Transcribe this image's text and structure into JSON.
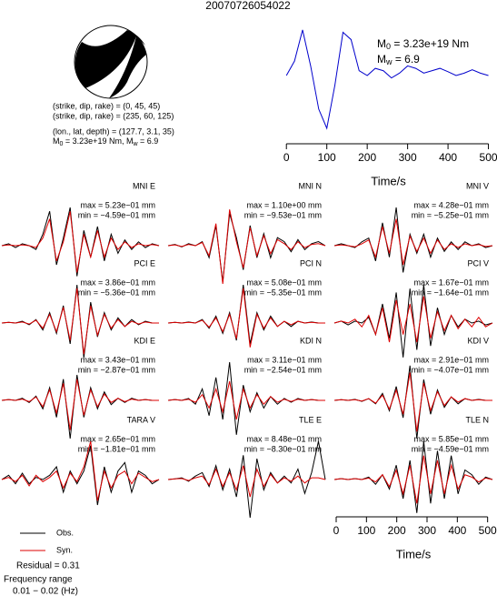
{
  "title": "20070726054022",
  "mechanism": {
    "lines": [
      "(strike, dip, rake) = (0, 45, 45)",
      "(strike, dip, rake) = (235, 60, 125)",
      "(lon., lat, depth) = (127.7, 3.1, 35)"
    ],
    "moment_parts": [
      "M",
      "0",
      " = 3.23e+19 Nm, M",
      "w",
      " = 6.9"
    ]
  },
  "source_labels": {
    "m0_parts": [
      "M",
      "0",
      " = 3.23e+19 Nm"
    ],
    "mw_parts": [
      "M",
      "w",
      " = 6.9"
    ]
  },
  "residual": "Residual = 0.31",
  "frequency": {
    "label": "Frequency range",
    "value": "0.01 − 0.02 (Hz)"
  },
  "chart_data": [
    {
      "type": "line",
      "x": [
        0,
        20,
        40,
        60,
        80,
        100,
        120,
        140,
        160,
        180,
        200,
        220,
        240,
        260,
        280,
        300,
        320,
        340,
        360,
        380,
        400,
        420,
        440,
        460,
        480,
        500
      ],
      "values": [
        0,
        0.3,
        0.95,
        0.2,
        -0.7,
        -1.1,
        -0.2,
        0.9,
        0.75,
        0.1,
        0.0,
        0.15,
        0.1,
        -0.05,
        0.05,
        0.2,
        0.15,
        0.05,
        0.1,
        0.15,
        0.08,
        0.0,
        0.05,
        0.12,
        0.05,
        0.0
      ],
      "color": "#0000cc",
      "xlim": [
        -5,
        510
      ],
      "xticks": [
        0,
        100,
        200,
        300,
        400,
        500
      ],
      "xlabel": "Time/s"
    },
    {
      "type": "line",
      "title": "MNI E",
      "annotations": [
        "max = 5.23e−01 mm",
        "min = −4.59e−01 mm"
      ],
      "series": [
        {
          "name": "Obs.",
          "color": "#000000",
          "values": [
            0,
            0.05,
            -0.05,
            0.05,
            0,
            -0.1,
            0.3,
            0.9,
            -0.5,
            0.2,
            1.0,
            -0.8,
            0.4,
            -0.3,
            0.5,
            -0.4,
            0.3,
            -0.2,
            0.15,
            -0.1,
            0.1,
            -0.05,
            0.05,
            0
          ]
        },
        {
          "name": "Syn.",
          "color": "#dd0000",
          "values": [
            0,
            0.02,
            0,
            0.02,
            0,
            -0.05,
            0.2,
            0.7,
            -0.4,
            0.1,
            0.9,
            -0.7,
            0.3,
            -0.3,
            0.4,
            -0.3,
            0.2,
            -0.1,
            0.1,
            -0.05,
            0.05,
            0,
            0.03,
            0
          ]
        }
      ]
    },
    {
      "type": "line",
      "title": "MNI N",
      "annotations": [
        "max = 1.10e+00 mm",
        "min = −9.53e−01 mm"
      ],
      "series": [
        {
          "name": "Obs.",
          "color": "#000000",
          "values": [
            0,
            0.03,
            -0.03,
            0.05,
            0,
            0.1,
            -0.3,
            0.5,
            -0.9,
            0.8,
            0.2,
            -0.6,
            0.5,
            -0.3,
            0.3,
            -0.3,
            0.2,
            0.1,
            -0.15,
            0.15,
            -0.1,
            0.05,
            0.1,
            0
          ]
        },
        {
          "name": "Syn.",
          "color": "#dd0000",
          "values": [
            0,
            0.02,
            -0.02,
            0.03,
            0,
            0.08,
            -0.25,
            0.55,
            -0.95,
            0.9,
            0.1,
            -0.55,
            0.45,
            -0.25,
            0.25,
            -0.2,
            0.15,
            0.05,
            -0.1,
            0.1,
            -0.05,
            0.03,
            0.05,
            0
          ]
        }
      ]
    },
    {
      "type": "line",
      "title": "MNI V",
      "annotations": [
        "max = 4.28e−01 mm",
        "min = −5.25e−01 mm"
      ],
      "series": [
        {
          "name": "Obs.",
          "color": "#000000",
          "values": [
            0,
            0.05,
            0,
            -0.05,
            0.1,
            0.2,
            -0.4,
            0.6,
            -0.3,
            1.0,
            -0.7,
            0.3,
            -0.2,
            0.3,
            -0.3,
            0.2,
            -0.15,
            0.1,
            -0.1,
            0.1,
            0,
            0.05,
            -0.05,
            0
          ]
        },
        {
          "name": "Syn.",
          "color": "#dd0000",
          "values": [
            0,
            0.02,
            0,
            -0.03,
            0.05,
            0.15,
            -0.3,
            0.5,
            -0.2,
            0.7,
            -0.5,
            0.25,
            -0.15,
            0.2,
            -0.2,
            0.15,
            -0.1,
            0.05,
            -0.05,
            0.05,
            0,
            0.03,
            -0.02,
            0
          ]
        }
      ]
    },
    {
      "type": "line",
      "title": "PCI E",
      "annotations": [
        "max = 3.86e−01 mm",
        "min = −5.36e−01 mm"
      ],
      "series": [
        {
          "name": "Obs.",
          "color": "#000000",
          "values": [
            0,
            0.02,
            0,
            0.05,
            -0.05,
            0.1,
            -0.2,
            0.3,
            -0.3,
            0.5,
            -0.6,
            1.1,
            -1.0,
            0.6,
            -0.4,
            0.3,
            -0.2,
            0.15,
            -0.1,
            0.1,
            -0.05,
            0.05,
            0,
            0
          ]
        },
        {
          "name": "Syn.",
          "color": "#dd0000",
          "values": [
            0,
            0.02,
            0,
            0.03,
            -0.03,
            0.08,
            -0.15,
            0.25,
            -0.25,
            0.45,
            -0.5,
            1.0,
            -0.9,
            0.5,
            -0.35,
            0.25,
            -0.15,
            0.1,
            -0.1,
            0.05,
            -0.03,
            0.03,
            0,
            0
          ]
        }
      ]
    },
    {
      "type": "line",
      "title": "PCI N",
      "annotations": [
        "max = 5.08e−01 mm",
        "min = −5.35e−01 mm"
      ],
      "series": [
        {
          "name": "Obs.",
          "color": "#000000",
          "values": [
            0,
            0.02,
            0,
            0.03,
            0,
            0.1,
            -0.15,
            0.2,
            -0.3,
            0.3,
            -0.5,
            1.1,
            -0.6,
            0.3,
            -0.2,
            0.2,
            -0.1,
            0.05,
            -0.1,
            0.05,
            0,
            0.03,
            0,
            0
          ]
        },
        {
          "name": "Syn.",
          "color": "#dd0000",
          "values": [
            0,
            0.02,
            0,
            0.02,
            0,
            0.08,
            -0.12,
            0.15,
            -0.25,
            0.25,
            -0.45,
            1.0,
            -0.7,
            0.25,
            -0.15,
            0.15,
            -0.1,
            0.05,
            -0.05,
            0.05,
            0,
            0.02,
            0,
            0
          ]
        }
      ]
    },
    {
      "type": "line",
      "title": "PCI V",
      "annotations": [
        "max = 1.67e−01 mm",
        "min = −1.64e−01 mm"
      ],
      "series": [
        {
          "name": "Obs.",
          "color": "#000000",
          "values": [
            0,
            0.05,
            -0.05,
            0.05,
            0,
            0.15,
            -0.3,
            0.5,
            -0.4,
            0.8,
            -0.9,
            0.9,
            -0.7,
            1.0,
            -0.6,
            0.4,
            -0.3,
            0.2,
            -0.1,
            0.1,
            0,
            0.05,
            -0.05,
            0
          ]
        },
        {
          "name": "Syn.",
          "color": "#dd0000",
          "values": [
            0,
            0.05,
            0,
            0.1,
            -0.1,
            0.2,
            -0.3,
            0.4,
            -0.5,
            0.6,
            -0.3,
            0.5,
            -0.5,
            0.7,
            -0.4,
            0.3,
            -0.2,
            0.2,
            -0.15,
            0.1,
            -0.1,
            0.15,
            -0.1,
            0
          ]
        }
      ]
    },
    {
      "type": "line",
      "title": "KDI E",
      "annotations": [
        "max = 3.43e−01 mm",
        "min = −2.87e−01 mm"
      ],
      "series": [
        {
          "name": "Obs.",
          "color": "#000000",
          "values": [
            0,
            0.02,
            0,
            0.05,
            -0.05,
            0.1,
            -0.2,
            0.3,
            -0.4,
            0.5,
            -0.9,
            0.6,
            -0.4,
            0.3,
            -0.2,
            0.2,
            -0.1,
            0.05,
            -0.05,
            0.05,
            0,
            0.02,
            0,
            0
          ]
        },
        {
          "name": "Syn.",
          "color": "#dd0000",
          "values": [
            0,
            0.02,
            0,
            0.03,
            -0.03,
            0.08,
            -0.15,
            0.25,
            -0.3,
            0.4,
            -0.7,
            0.5,
            -0.35,
            0.25,
            -0.15,
            0.15,
            -0.05,
            0.05,
            -0.03,
            0.03,
            0,
            0.02,
            0,
            0
          ]
        }
      ]
    },
    {
      "type": "line",
      "title": "KDI N",
      "annotations": [
        "max = 3.11e−01 mm",
        "min = −2.54e−01 mm"
      ],
      "series": [
        {
          "name": "Obs.",
          "color": "#000000",
          "values": [
            0,
            0.02,
            0,
            0.05,
            -0.1,
            0.3,
            -0.4,
            0.6,
            -0.5,
            1.0,
            -0.9,
            0.4,
            -0.3,
            0.2,
            -0.2,
            0.1,
            -0.1,
            0.05,
            -0.05,
            0.05,
            0,
            0.02,
            0,
            0
          ]
        },
        {
          "name": "Syn.",
          "color": "#dd0000",
          "values": [
            0,
            0.02,
            0,
            0.03,
            -0.05,
            0.15,
            -0.2,
            0.3,
            -0.3,
            0.5,
            -0.5,
            0.3,
            -0.2,
            0.15,
            -0.1,
            0.1,
            -0.05,
            0.03,
            -0.03,
            0.03,
            0,
            0.02,
            0,
            0
          ]
        }
      ]
    },
    {
      "type": "line",
      "title": "KDI V",
      "annotations": [
        "max = 2.91e−01 mm",
        "min = −4.07e−01 mm"
      ],
      "series": [
        {
          "name": "Obs.",
          "color": "#000000",
          "values": [
            0,
            0.02,
            0,
            0.03,
            -0.03,
            0.05,
            -0.1,
            0.2,
            -0.3,
            0.4,
            -0.5,
            1.0,
            -1.1,
            0.6,
            -0.4,
            0.3,
            -0.2,
            0.1,
            -0.1,
            0.05,
            0,
            0.03,
            0,
            0
          ]
        },
        {
          "name": "Syn.",
          "color": "#dd0000",
          "values": [
            0,
            0.02,
            0,
            0.02,
            -0.02,
            0.05,
            -0.08,
            0.15,
            -0.25,
            0.3,
            -0.4,
            0.8,
            -0.9,
            0.5,
            -0.3,
            0.25,
            -0.15,
            0.1,
            -0.05,
            0.05,
            0,
            0.02,
            0,
            0
          ]
        }
      ]
    },
    {
      "type": "line",
      "title": "TARA V",
      "annotations": [
        "max = 2.65e−01 mm",
        "min = −1.81e−01 mm"
      ],
      "series": [
        {
          "name": "Obs.",
          "color": "#000000",
          "values": [
            0,
            0.1,
            -0.1,
            0.15,
            -0.1,
            0.05,
            0,
            0.1,
            0.3,
            -0.3,
            0.2,
            -0.1,
            0.2,
            0.8,
            -0.6,
            0.3,
            -0.3,
            0.2,
            0.4,
            -0.3,
            0.2,
            0.1,
            -0.1,
            0
          ]
        },
        {
          "name": "Syn.",
          "color": "#dd0000",
          "values": [
            0,
            0.05,
            -0.05,
            0.1,
            -0.15,
            0.1,
            -0.05,
            0.05,
            0.2,
            -0.2,
            0.15,
            -0.05,
            0.3,
            0.9,
            -0.5,
            0.2,
            -0.2,
            0.1,
            0.2,
            -0.1,
            0.15,
            0.05,
            -0.05,
            0
          ]
        }
      ]
    },
    {
      "type": "line",
      "title": "TLE E",
      "annotations": [
        "max = 8.48e−01 mm",
        "min = −8.30e−01 mm"
      ],
      "series": [
        {
          "name": "Obs.",
          "color": "#000000",
          "values": [
            0,
            0.02,
            0.05,
            -0.05,
            0.1,
            0.2,
            -0.2,
            0.4,
            -0.3,
            0.3,
            -0.5,
            0.7,
            -1.1,
            0.6,
            -0.3,
            0.2,
            -0.1,
            0.1,
            -0.1,
            0.3,
            -0.4,
            0.2,
            1.1,
            0
          ]
        },
        {
          "name": "Syn.",
          "color": "#dd0000",
          "values": [
            0,
            0.02,
            0.03,
            -0.03,
            0.05,
            0.1,
            -0.15,
            0.3,
            -0.2,
            0.2,
            -0.3,
            0.4,
            -0.5,
            0.3,
            -0.2,
            0.15,
            -0.1,
            0.05,
            -0.05,
            0.1,
            -0.1,
            0.05,
            0.05,
            0
          ]
        }
      ]
    },
    {
      "type": "line",
      "title": "TLE N",
      "annotations": [
        "max = 5.85e−01 mm",
        "min = −4.59e−01 mm"
      ],
      "series": [
        {
          "name": "Obs.",
          "color": "#000000",
          "values": [
            0,
            0.02,
            0,
            0.02,
            0,
            0.05,
            -0.1,
            0.1,
            -0.2,
            0.3,
            -0.4,
            0.4,
            -0.7,
            0.8,
            -0.5,
            0.6,
            -0.4,
            0.5,
            -0.3,
            0.2,
            0.1,
            -0.1,
            0.05,
            0
          ]
        },
        {
          "name": "Syn.",
          "color": "#dd0000",
          "values": [
            0,
            0.02,
            0,
            0.02,
            0,
            0.03,
            -0.05,
            0.1,
            -0.15,
            0.2,
            -0.3,
            0.3,
            -0.5,
            0.5,
            -0.3,
            0.4,
            -0.3,
            0.3,
            -0.2,
            0.1,
            0.05,
            -0.05,
            0.03,
            0
          ]
        }
      ],
      "xlim": [
        0,
        510
      ],
      "xticks": [
        0,
        100,
        200,
        300,
        400,
        500
      ],
      "xlabel": "Time/s"
    }
  ]
}
